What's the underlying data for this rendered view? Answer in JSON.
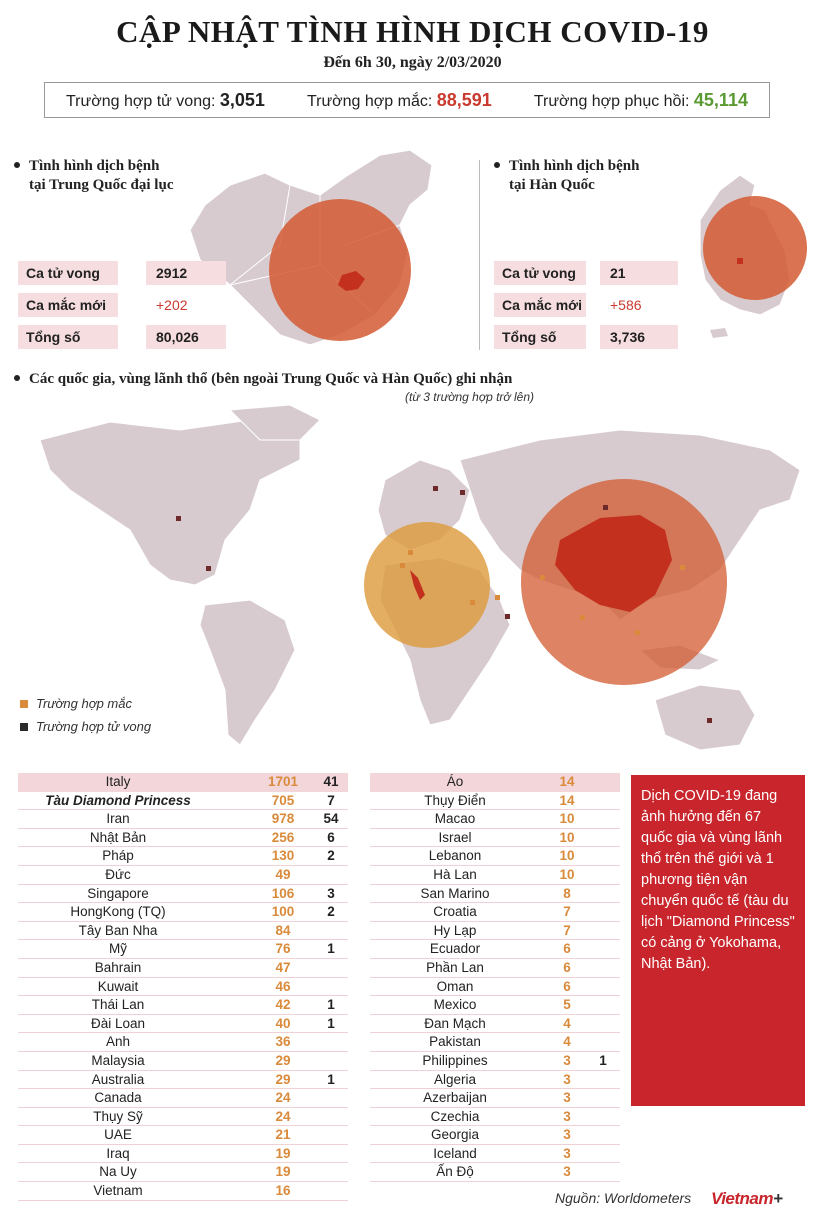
{
  "header": {
    "title": "CẬP NHẬT TÌNH HÌNH DỊCH COVID-19",
    "subtitle": "Đến 6h 30, ngày 2/03/2020"
  },
  "totals": {
    "deaths_label": "Trường hợp tử vong: ",
    "deaths_value": "3,051",
    "cases_label": "Trường hợp mắc: ",
    "cases_value": "88,591",
    "recovered_label": "Trường hợp phục hồi: ",
    "recovered_value": "45,114"
  },
  "china": {
    "title_line1": "Tình hình dịch bệnh",
    "title_line2": "tại Trung Quốc đại lục",
    "rows": [
      {
        "label": "Ca tử vong",
        "value": "2912"
      },
      {
        "label": "Ca mắc mới",
        "value": "+202"
      },
      {
        "label": "Tổng số",
        "value": "80,026"
      }
    ]
  },
  "korea": {
    "title_line1": "Tình hình dịch bệnh",
    "title_line2": "tại Hàn Quốc",
    "rows": [
      {
        "label": "Ca tử vong",
        "value": "21"
      },
      {
        "label": "Ca mắc mới",
        "value": "+586"
      },
      {
        "label": "Tổng số",
        "value": "3,736"
      }
    ]
  },
  "world": {
    "title": "Các quốc gia, vùng lãnh thổ (bên ngoài Trung Quốc và Hàn Quốc) ghi nhận",
    "note": "(từ 3 trường hợp trở lên)",
    "legend_cases": "Trường hợp mắc",
    "legend_deaths": "Trường hợp tử vong"
  },
  "colors": {
    "map_land": "#d7cbd0",
    "map_border": "#ffffff",
    "circle_red": "#d35b32",
    "circle_orange": "#dc9a3a",
    "case_marker": "#d98a3a",
    "death_marker": "#6e2a2a",
    "accent_red": "#c8262c"
  },
  "table_left": [
    {
      "name": "Italy",
      "cases": "1701",
      "deaths": "41"
    },
    {
      "name": "Tàu Diamond Princess",
      "cases": "705",
      "deaths": "7",
      "italic": true
    },
    {
      "name": "Iran",
      "cases": "978",
      "deaths": "54"
    },
    {
      "name": "Nhật Bản",
      "cases": "256",
      "deaths": "6"
    },
    {
      "name": "Pháp",
      "cases": "130",
      "deaths": "2"
    },
    {
      "name": "Đức",
      "cases": "49",
      "deaths": ""
    },
    {
      "name": "Singapore",
      "cases": "106",
      "deaths": "3"
    },
    {
      "name": "HongKong (TQ)",
      "cases": "100",
      "deaths": "2"
    },
    {
      "name": "Tây Ban Nha",
      "cases": "84",
      "deaths": ""
    },
    {
      "name": "Mỹ",
      "cases": "76",
      "deaths": "1"
    },
    {
      "name": "Bahrain",
      "cases": "47",
      "deaths": ""
    },
    {
      "name": "Kuwait",
      "cases": "46",
      "deaths": ""
    },
    {
      "name": "Thái Lan",
      "cases": "42",
      "deaths": "1"
    },
    {
      "name": "Đài Loan",
      "cases": "40",
      "deaths": "1"
    },
    {
      "name": "Anh",
      "cases": "36",
      "deaths": ""
    },
    {
      "name": "Malaysia",
      "cases": "29",
      "deaths": ""
    },
    {
      "name": "Australia",
      "cases": "29",
      "deaths": "1"
    },
    {
      "name": "Canada",
      "cases": "24",
      "deaths": ""
    },
    {
      "name": "Thụy Sỹ",
      "cases": "24",
      "deaths": ""
    },
    {
      "name": "UAE",
      "cases": "21",
      "deaths": ""
    },
    {
      "name": "Iraq",
      "cases": "19",
      "deaths": ""
    },
    {
      "name": "Na Uy",
      "cases": "19",
      "deaths": ""
    },
    {
      "name": "Vietnam",
      "cases": "16",
      "deaths": ""
    }
  ],
  "table_right": [
    {
      "name": "Áo",
      "cases": "14",
      "deaths": ""
    },
    {
      "name": "Thụy Điển",
      "cases": "14",
      "deaths": ""
    },
    {
      "name": "Macao",
      "cases": "10",
      "deaths": ""
    },
    {
      "name": "Israel",
      "cases": "10",
      "deaths": ""
    },
    {
      "name": "Lebanon",
      "cases": "10",
      "deaths": ""
    },
    {
      "name": "Hà Lan",
      "cases": "10",
      "deaths": ""
    },
    {
      "name": "San Marino",
      "cases": "8",
      "deaths": ""
    },
    {
      "name": "Croatia",
      "cases": "7",
      "deaths": ""
    },
    {
      "name": "Hy Lạp",
      "cases": "7",
      "deaths": ""
    },
    {
      "name": "Ecuador",
      "cases": "6",
      "deaths": ""
    },
    {
      "name": "Phần Lan",
      "cases": "6",
      "deaths": ""
    },
    {
      "name": "Oman",
      "cases": "6",
      "deaths": ""
    },
    {
      "name": "Mexico",
      "cases": "5",
      "deaths": ""
    },
    {
      "name": "Đan Mạch",
      "cases": "4",
      "deaths": ""
    },
    {
      "name": "Pakistan",
      "cases": "4",
      "deaths": ""
    },
    {
      "name": "Philippines",
      "cases": "3",
      "deaths": "1"
    },
    {
      "name": "Algeria",
      "cases": "3",
      "deaths": ""
    },
    {
      "name": "Azerbaijan",
      "cases": "3",
      "deaths": ""
    },
    {
      "name": "Czechia",
      "cases": "3",
      "deaths": ""
    },
    {
      "name": "Georgia",
      "cases": "3",
      "deaths": ""
    },
    {
      "name": "Iceland",
      "cases": "3",
      "deaths": ""
    },
    {
      "name": "Ấn Độ",
      "cases": "3",
      "deaths": ""
    }
  ],
  "sidebar_text": "Dịch COVID-19 đang ảnh hưởng đến 67 quốc gia và vùng lãnh thổ trên thế giới và 1 phương tiện vận chuyển quốc tế (tàu du lịch \"Diamond Princess\" có cảng ở Yokohama, Nhật Bản).",
  "footer": {
    "source": "Nguồn: Worldometers",
    "logo_main": "Vietnam",
    "logo_plus": "+"
  }
}
